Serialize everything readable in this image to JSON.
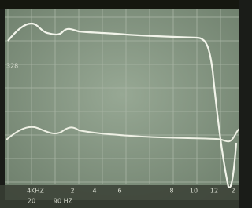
{
  "screen": {
    "left_marker": "328",
    "x_labels": [
      "4KHZ",
      "2",
      "4",
      "6",
      "8",
      "10",
      "12",
      "2"
    ],
    "bottom_labels": [
      "20",
      "90 HZ"
    ]
  }
}
